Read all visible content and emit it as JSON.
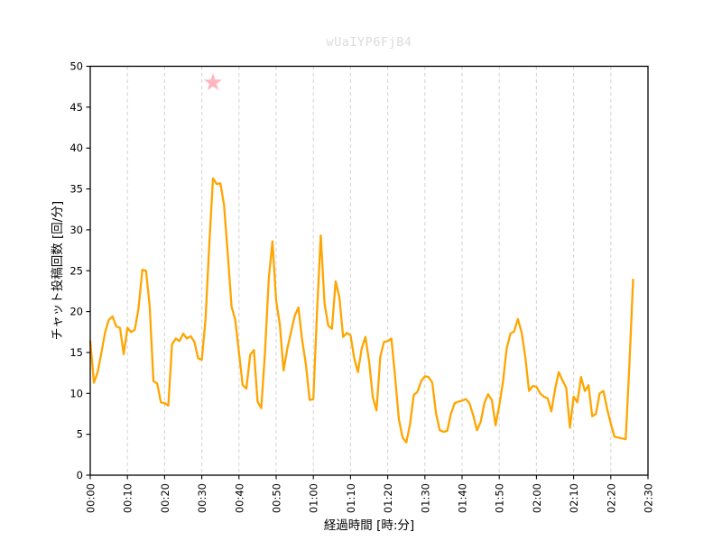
{
  "chart_data": {
    "type": "line",
    "watermark": "wUaIYP6FjB4",
    "xlabel": "経過時間 [時:分]",
    "ylabel": "チャット投稿回数 [回/分]",
    "xlim_minutes": [
      0,
      150
    ],
    "ylim": [
      0,
      50
    ],
    "x_ticks_minutes": [
      0,
      10,
      20,
      30,
      40,
      50,
      60,
      70,
      80,
      90,
      100,
      110,
      120,
      130,
      140,
      150
    ],
    "x_tick_labels": [
      "00:00",
      "00:10",
      "00:20",
      "00:30",
      "00:40",
      "00:50",
      "01:00",
      "01:10",
      "01:20",
      "01:30",
      "01:40",
      "01:50",
      "02:00",
      "02:10",
      "02:20",
      "02:30"
    ],
    "y_ticks": [
      0,
      5,
      10,
      15,
      20,
      25,
      30,
      35,
      40,
      45,
      50
    ],
    "grid": "vertical-dashed-only",
    "legend": "none",
    "line_color": "#FFA500",
    "series": [
      {
        "name": "チャット投稿回数",
        "x_start_minute": 0,
        "x_step_minutes": 1,
        "values": [
          16.4,
          11.3,
          12.6,
          15.0,
          17.5,
          19.0,
          19.4,
          18.2,
          18.0,
          14.8,
          18.0,
          17.5,
          17.8,
          20.5,
          25.1,
          25.0,
          20.6,
          11.5,
          11.2,
          8.9,
          8.8,
          8.5,
          16.0,
          16.7,
          16.4,
          17.3,
          16.7,
          17.0,
          16.3,
          14.3,
          14.1,
          19.0,
          28.0,
          36.3,
          35.6,
          35.7,
          33.0,
          27.0,
          20.6,
          19.0,
          15.0,
          11.0,
          10.6,
          14.7,
          15.3,
          9.0,
          8.2,
          15.0,
          24.0,
          28.6,
          21.3,
          18.4,
          12.8,
          15.5,
          17.5,
          19.5,
          20.5,
          16.5,
          13.5,
          9.2,
          9.3,
          20.0,
          29.3,
          21.0,
          18.3,
          17.9,
          23.7,
          21.8,
          16.9,
          17.4,
          17.1,
          14.3,
          12.6,
          15.5,
          16.9,
          13.9,
          9.5,
          7.9,
          14.5,
          16.3,
          16.4,
          16.7,
          12.0,
          6.8,
          4.6,
          4.0,
          6.2,
          9.8,
          10.2,
          11.5,
          12.1,
          12.0,
          11.3,
          7.5,
          5.5,
          5.3,
          5.4,
          7.5,
          8.8,
          9.0,
          9.1,
          9.3,
          8.8,
          7.3,
          5.5,
          6.5,
          8.8,
          9.9,
          9.2,
          6.1,
          8.5,
          11.4,
          15.5,
          17.3,
          17.6,
          19.1,
          17.5,
          14.5,
          10.3,
          10.9,
          10.8,
          10.0,
          9.6,
          9.4,
          7.8,
          10.5,
          12.6,
          11.6,
          10.7,
          5.8,
          9.6,
          8.9,
          12.0,
          10.3,
          11.0,
          7.2,
          7.5,
          10.0,
          10.3,
          8.1,
          6.3,
          4.7,
          4.6,
          4.5,
          4.4,
          13.5,
          23.9
        ]
      }
    ],
    "annotation_star": {
      "x_minute": 33,
      "y_value": 48,
      "color": "#FFB6C1"
    }
  }
}
